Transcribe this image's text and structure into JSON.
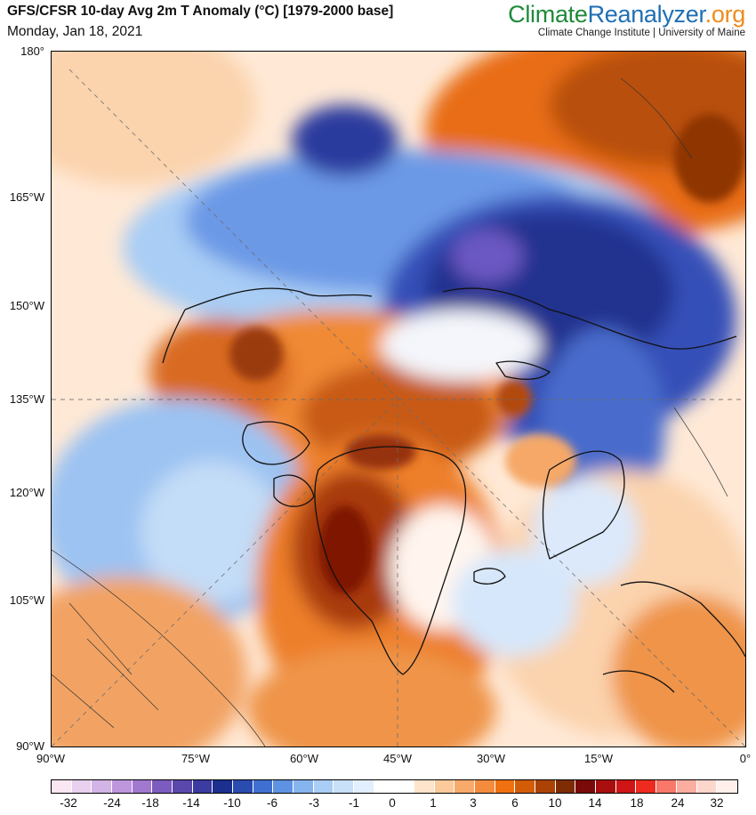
{
  "header": {
    "title": "GFS/CFSR 10-day Avg 2m T Anomaly (°C) [1979-2000 base]",
    "date": "Monday, Jan 18, 2021"
  },
  "brand": {
    "part1": "Climate",
    "part2": "Reanalyzer",
    "part3": ".org",
    "subtitle": "Climate Change Institute | University of Maine",
    "colors": {
      "climate": "#1f8a3b",
      "reanalyzer": "#1f6fb5",
      "org": "#f08a1e"
    }
  },
  "map": {
    "projection": "polar stereographic (north)",
    "lat_labels": [
      "180°",
      "165°W",
      "150°W",
      "135°W",
      "120°W",
      "105°W",
      "90°W"
    ],
    "lon_labels": [
      "90°W",
      "75°W",
      "60°W",
      "45°W",
      "30°W",
      "15°W",
      "0°"
    ],
    "features": [
      {
        "name": "siberian-cold-anomaly",
        "sign": "negative"
      },
      {
        "name": "arctic-ocean-warm-anomaly",
        "sign": "positive"
      },
      {
        "name": "greenland-warm-anomaly",
        "sign": "positive"
      },
      {
        "name": "canada-cold-anomaly",
        "sign": "negative"
      },
      {
        "name": "russia-warm-anomaly",
        "sign": "positive"
      }
    ]
  },
  "colorbar": {
    "labels": [
      "-32",
      "-24",
      "-18",
      "-14",
      "-10",
      "-6",
      "-3",
      "-1",
      "0",
      "1",
      "3",
      "6",
      "10",
      "14",
      "18",
      "24",
      "32"
    ],
    "colors": [
      "#fbe6f3",
      "#e8d0ee",
      "#d3b4e6",
      "#bd96dc",
      "#a079cf",
      "#7d5cbf",
      "#5a48ad",
      "#3b3ba1",
      "#1c2f8f",
      "#2a4bb0",
      "#3f6fd0",
      "#5e92e3",
      "#86b4ef",
      "#a9cdf5",
      "#c8e0f8",
      "#e2efff",
      "#ffffff",
      "#ffffff",
      "#fde4cb",
      "#fbc99a",
      "#f8aa6b",
      "#f58b3c",
      "#f07111",
      "#d35c08",
      "#ab4306",
      "#7e2c04",
      "#7a0a0a",
      "#a90e0e",
      "#cf1515",
      "#ef2a1f",
      "#f9786a",
      "#fbaea0",
      "#fdd6cc",
      "#fff0ec"
    ]
  }
}
